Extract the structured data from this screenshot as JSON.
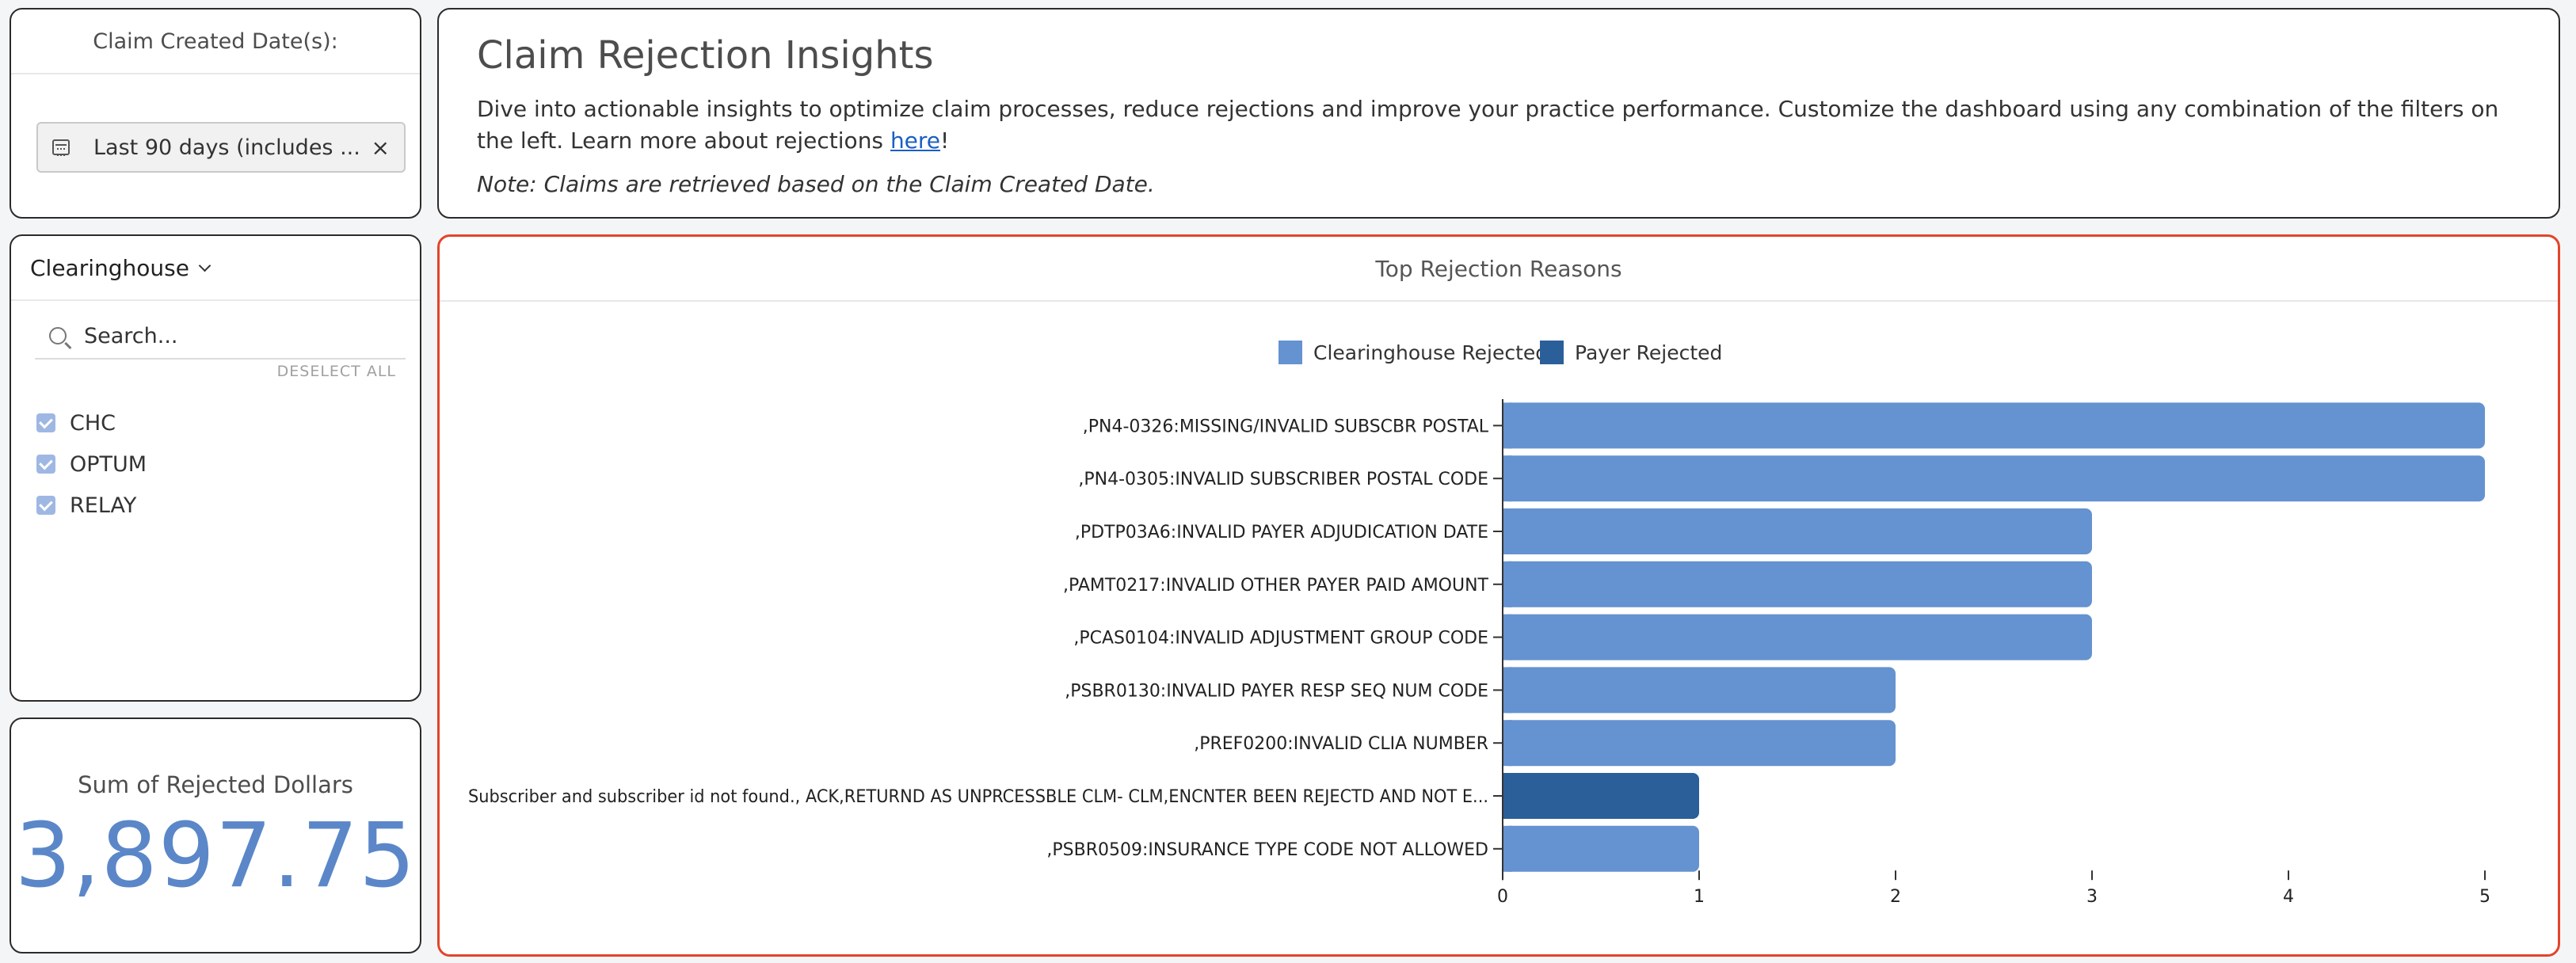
{
  "date_filter": {
    "title": "Claim Created Date(s):",
    "chip_text": "Last 90 days (includes ...",
    "close": "×"
  },
  "clearinghouse": {
    "title": "Clearinghouse",
    "search_placeholder": "Search...",
    "deselect_all": "DESELECT ALL",
    "items": [
      {
        "label": "CHC",
        "checked": true
      },
      {
        "label": "OPTUM",
        "checked": true
      },
      {
        "label": "RELAY",
        "checked": true
      }
    ]
  },
  "sum": {
    "title": "Sum of Rejected Dollars",
    "value": "3,897.75"
  },
  "header": {
    "title": "Claim Rejection Insights",
    "description_pre": "Dive into actionable insights to optimize claim processes, reduce rejections and improve your practice performance. Customize the dashboard using any combination of the filters on the left. Learn more about rejections ",
    "link_text": "here",
    "description_post": "!",
    "note": "Note: Claims are retrieved based on the Claim Created Date."
  },
  "chart_data": {
    "type": "bar",
    "orientation": "horizontal",
    "title": "Top Rejection Reasons",
    "legend_placement": "top-center",
    "series": [
      {
        "name": "Clearinghouse Rejected",
        "color": "#6592d0"
      },
      {
        "name": "Payer Rejected",
        "color": "#2a5f99"
      }
    ],
    "categories": [
      ",PN4-0326:MISSING/INVALID SUBSCBR POSTAL",
      ",PN4-0305:INVALID SUBSCRIBER POSTAL CODE",
      ",PDTP03A6:INVALID PAYER ADJUDICATION DATE",
      ",PAMT0217:INVALID OTHER PAYER PAID AMOUNT",
      ",PCAS0104:INVALID ADJUSTMENT GROUP CODE",
      ",PSBR0130:INVALID PAYER RESP SEQ NUM CODE",
      ",PREF0200:INVALID CLIA NUMBER",
      "Subscriber and subscriber id not found., ACK,RETURND AS UNPRCESSBLE CLM- CLM,ENCNTER BEEN REJECTD AND NOT E...",
      ",PSBR0509:INSURANCE TYPE CODE NOT ALLOWED"
    ],
    "values": [
      5,
      5,
      3,
      3,
      3,
      2,
      2,
      1,
      1
    ],
    "bar_series": [
      "Clearinghouse Rejected",
      "Clearinghouse Rejected",
      "Clearinghouse Rejected",
      "Clearinghouse Rejected",
      "Clearinghouse Rejected",
      "Clearinghouse Rejected",
      "Clearinghouse Rejected",
      "Payer Rejected",
      "Clearinghouse Rejected"
    ],
    "xticks": [
      "0",
      "1",
      "2",
      "3",
      "4",
      "5"
    ],
    "xlim": [
      0,
      5
    ],
    "grid": false
  }
}
